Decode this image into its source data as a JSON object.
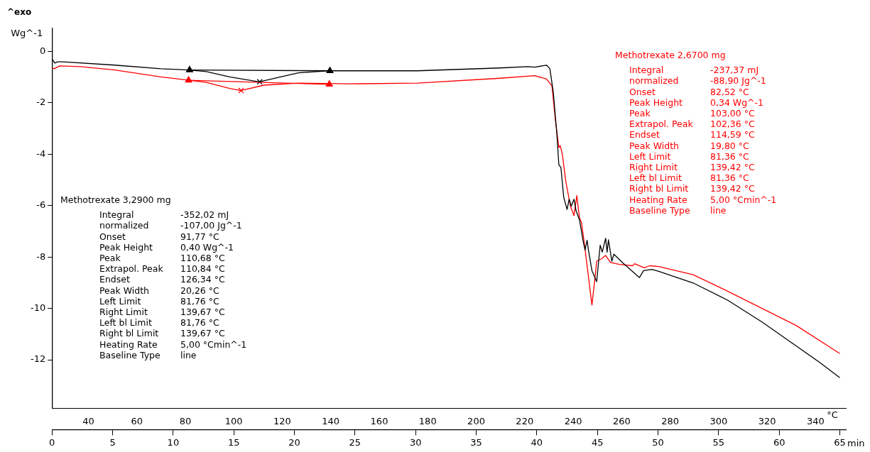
{
  "chart_data": {
    "type": "line",
    "xlabel": "min",
    "x2label": "°C",
    "ylabel": "Wg^-1",
    "xlim": [
      0,
      65.5
    ],
    "xticks": [
      0,
      5,
      10,
      15,
      20,
      25,
      30,
      35,
      40,
      45,
      50,
      55,
      60,
      65
    ],
    "x2lim": [
      25,
      352.5
    ],
    "x2ticks": [
      40,
      60,
      80,
      100,
      120,
      140,
      160,
      180,
      200,
      220,
      240,
      260,
      280,
      300,
      320,
      340
    ],
    "ylim": [
      -13.9,
      0.9
    ],
    "yticks": [
      0,
      -2,
      -4,
      -6,
      -8,
      -10,
      -12
    ],
    "grid": false,
    "legend": false,
    "marker": "none",
    "annotations": [
      "^exo",
      "Integral\t-352,02 mJ\nnormalized\t-107,00 Jg^-1\nOnset\t91,77 °C\nPeak Height\t0,40 Wg^-1\nPeak\t110,68 °C\nExtrapol. Peak\t110,84 °C\nEndset\t126,34 °C\nPeak Width\t20,26 °C\nLeft Limit\t81,76 °C\nRight Limit\t139,67 °C\nLeft bl Limit\t81,76 °C\nRight bl Limit\t139,67 °C\nHeating Rate\t5,00 °Cmin^-1\nBaseline Type\tline",
      "Integral\t-237,37 mJ\nnormalized\t-88,90 Jg^-1\nOnset\t82,52 °C\nPeak Height\t0,34 Wg^-1\nPeak\t103,00 °C\nExtrapol. Peak\t102,36 °C\nEndset\t114,59 °C\nPeak Width\t19,80 °C\nLeft Limit\t81,36 °C\nRight Limit\t139,42 °C\nLeft bl Limit\t81,36 °C\nRight bl Limit\t139,42 °C\nHeating Rate\t5,00 °Cmin^-1\nBaseline Type\tline"
    ],
    "series": [
      {
        "name": "Methotrexate 3,2900 mg",
        "color": "#000000",
        "x": [
          0.06,
          0.23,
          0.45,
          0.91,
          5.17,
          8.98,
          11.25,
          12.73,
          14.66,
          17.1,
          18.41,
          20.34,
          22.78,
          30.17,
          36.99,
          39.26,
          39.83,
          40.8,
          41.08,
          41.36,
          41.65,
          41.82,
          41.99,
          42.22,
          42.5,
          42.67,
          42.84,
          43.07,
          43.24,
          43.52,
          43.81,
          43.98,
          44.15,
          44.26,
          44.55,
          44.94,
          45.23,
          45.4,
          45.68,
          45.8,
          45.91,
          46.19,
          46.36,
          47.05,
          48.47,
          48.81,
          49.49,
          50.06,
          52.9,
          55.74,
          58.58,
          61.42,
          63.3,
          65.0
        ],
        "values": [
          -0.32,
          -0.45,
          -0.4,
          -0.4,
          -0.53,
          -0.67,
          -0.72,
          -0.78,
          -0.99,
          -1.18,
          -1.04,
          -0.83,
          -0.75,
          -0.75,
          -0.64,
          -0.59,
          -0.61,
          -0.53,
          -0.67,
          -1.58,
          -3.18,
          -4.41,
          -4.52,
          -5.67,
          -6.15,
          -5.75,
          -6.02,
          -5.75,
          -6.2,
          -6.55,
          -7.35,
          -7.73,
          -7.35,
          -7.73,
          -8.53,
          -8.96,
          -7.54,
          -7.81,
          -7.27,
          -7.81,
          -7.33,
          -8.16,
          -7.89,
          -8.21,
          -8.8,
          -8.53,
          -8.48,
          -8.56,
          -9.01,
          -9.68,
          -10.53,
          -11.47,
          -12.09,
          -12.7
        ]
      },
      {
        "name": "Methotrexate 2,6700 mg",
        "color": "#ff0000",
        "x": [
          0.0,
          0.17,
          0.63,
          2.33,
          5.17,
          8.98,
          11.31,
          12.73,
          14.66,
          15.57,
          17.5,
          20.34,
          24.49,
          30.17,
          36.99,
          39.83,
          40.8,
          41.25,
          41.53,
          41.82,
          41.93,
          42.1,
          42.39,
          42.56,
          42.78,
          43.07,
          43.3,
          43.52,
          43.69,
          43.92,
          44.2,
          44.55,
          44.83,
          44.94,
          45.34,
          45.68,
          46.08,
          46.82,
          47.9,
          48.07,
          48.86,
          49.32,
          50.06,
          52.9,
          55.74,
          58.58,
          61.42,
          65.0
        ],
        "values": [
          -0.64,
          -0.67,
          -0.56,
          -0.59,
          -0.72,
          -0.99,
          -1.12,
          -1.2,
          -1.44,
          -1.52,
          -1.31,
          -1.23,
          -1.26,
          -1.23,
          -1.04,
          -0.94,
          -1.07,
          -1.34,
          -2.65,
          -3.74,
          -3.66,
          -3.98,
          -5.05,
          -5.48,
          -6.02,
          -6.39,
          -5.61,
          -6.47,
          -6.66,
          -7.46,
          -8.53,
          -9.87,
          -8.69,
          -8.16,
          -8.07,
          -7.94,
          -8.21,
          -8.29,
          -8.34,
          -8.26,
          -8.42,
          -8.34,
          -8.37,
          -8.69,
          -9.33,
          -10.0,
          -10.67,
          -11.76
        ]
      },
      {
        "type": "line",
        "color": "#000000",
        "marker": "triangle",
        "x": [
          11.35,
          22.93
        ],
        "values": [
          -0.72,
          -0.75
        ]
      },
      {
        "type": "line",
        "color": "#ff0000",
        "marker": "triangle",
        "x": [
          11.27,
          22.88
        ],
        "values": [
          -1.12,
          -1.28
        ]
      },
      {
        "type": "scatter",
        "color": "#000000",
        "marker": "cross",
        "x": [
          17.14
        ],
        "values": [
          -1.18
        ]
      },
      {
        "type": "scatter",
        "color": "#ff0000",
        "marker": "cross",
        "x": [
          15.6
        ],
        "values": [
          -1.52
        ]
      }
    ]
  }
}
